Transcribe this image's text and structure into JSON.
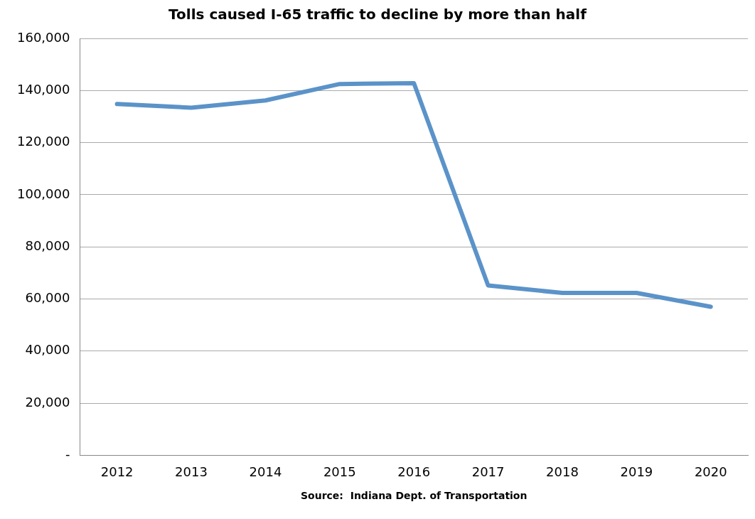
{
  "chart_data": {
    "type": "line",
    "title": "Tolls caused I-65 traffic to decline by more than half",
    "categories": [
      "2012",
      "2013",
      "2014",
      "2015",
      "2016",
      "2017",
      "2018",
      "2019",
      "2020"
    ],
    "series": [
      {
        "color": "#5b93c9",
        "values": [
          134800,
          133400,
          136200,
          142500,
          142800,
          65200,
          62300,
          62300,
          57000
        ]
      }
    ],
    "ylim": [
      0,
      160000
    ],
    "yticks": [
      {
        "value": 0,
        "label": "-"
      },
      {
        "value": 20000,
        "label": "20,000"
      },
      {
        "value": 40000,
        "label": "40,000"
      },
      {
        "value": 60000,
        "label": "60,000"
      },
      {
        "value": 80000,
        "label": "80,000"
      },
      {
        "value": 100000,
        "label": "100,000"
      },
      {
        "value": 120000,
        "label": "120,000"
      },
      {
        "value": 140000,
        "label": "140,000"
      },
      {
        "value": 160000,
        "label": "160,000"
      }
    ],
    "grid": "y",
    "legend": false,
    "marker": "none",
    "line_style": "solid",
    "annotations": [
      "Source:  Indiana Dept. of Transportation"
    ]
  }
}
